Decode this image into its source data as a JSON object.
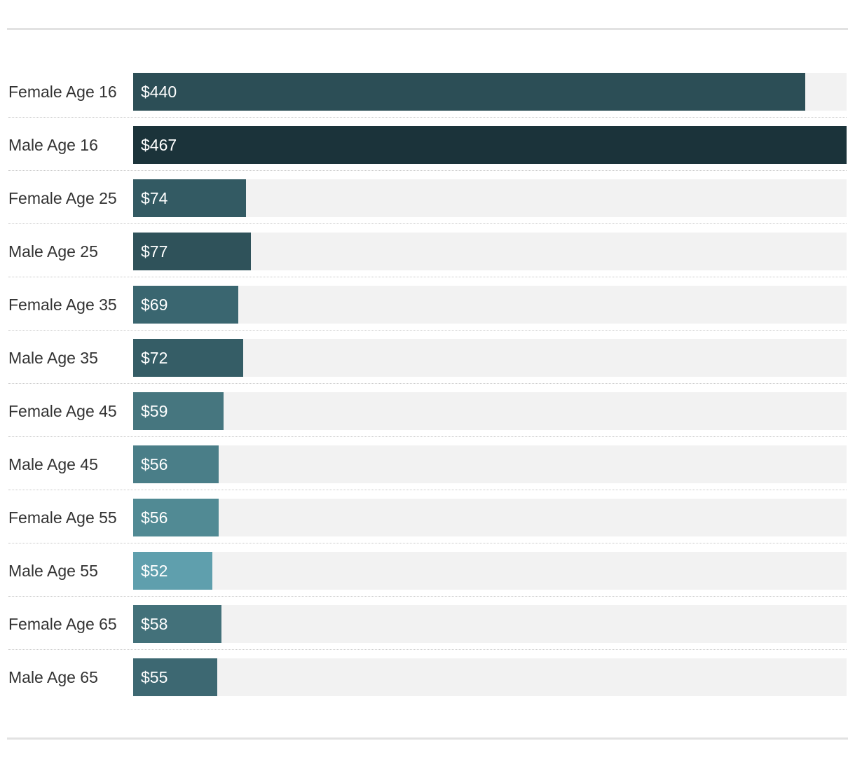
{
  "chart_data": {
    "type": "bar",
    "orientation": "horizontal",
    "value_prefix": "$",
    "xlim": [
      0,
      467
    ],
    "grid": false,
    "categories": [
      "Female Age 16",
      "Male Age 16",
      "Female Age 25",
      "Male Age 25",
      "Female Age 35",
      "Male Age 35",
      "Female Age 45",
      "Male Age 45",
      "Female Age 55",
      "Male Age 55",
      "Female Age 65",
      "Male Age 65"
    ],
    "values": [
      440,
      467,
      74,
      77,
      69,
      72,
      59,
      56,
      56,
      52,
      58,
      55
    ],
    "value_labels": [
      "$440",
      "$467",
      "$74",
      "$77",
      "$69",
      "$72",
      "$59",
      "$56",
      "$56",
      "$52",
      "$58",
      "$55"
    ],
    "colors": [
      "#2c4e56",
      "#1b333a",
      "#335a63",
      "#2f525a",
      "#3a6670",
      "#355d66",
      "#46767f",
      "#4a7e88",
      "#518a94",
      "#5f9fad",
      "#43717a",
      "#3d6872"
    ],
    "track_color": "#f2f2f2"
  }
}
